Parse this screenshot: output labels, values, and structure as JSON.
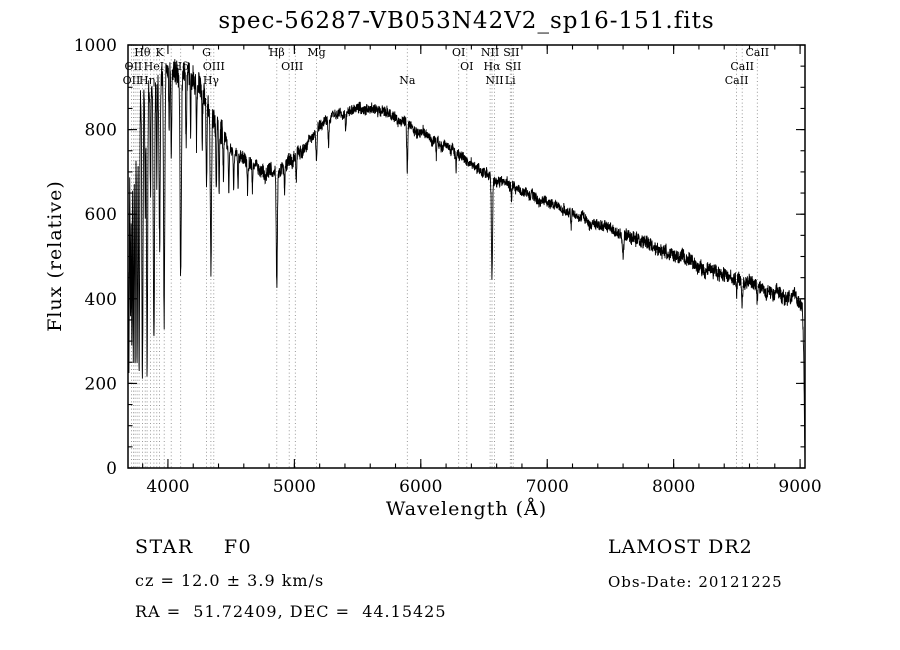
{
  "title": "spec-56287-VB053N42V2_sp16-151.fits",
  "footer": {
    "class_label": "STAR    F0",
    "survey": "LAMOST DR2",
    "cz": "cz = 12.0 ± 3.9 km/s",
    "obs_date": "Obs-Date: 20121225",
    "coords": "RA =  51.72409, DEC =  44.15425"
  },
  "chart_data": {
    "type": "line",
    "title": "spec-56287-VB053N42V2_sp16-151.fits",
    "xlabel": "Wavelength (Å)",
    "ylabel": "Flux (relative)",
    "xlim": [
      3684,
      9039
    ],
    "ylim": [
      0,
      1000
    ],
    "x_ticks": [
      4000,
      5000,
      6000,
      7000,
      8000,
      9000
    ],
    "y_ticks": [
      0,
      200,
      400,
      600,
      800,
      1000
    ],
    "x_minor_step": 200,
    "y_minor_step": 50,
    "grid": false,
    "legend": null,
    "envelope": [
      [
        3684,
        500
      ],
      [
        3700,
        800
      ],
      [
        3740,
        860
      ],
      [
        3780,
        885
      ],
      [
        3820,
        895
      ],
      [
        3860,
        905
      ],
      [
        3900,
        915
      ],
      [
        3950,
        935
      ],
      [
        4000,
        948
      ],
      [
        4060,
        930
      ],
      [
        4120,
        928
      ],
      [
        4180,
        930
      ],
      [
        4240,
        908
      ],
      [
        4300,
        880
      ],
      [
        4360,
        820
      ],
      [
        4420,
        795
      ],
      [
        4480,
        762
      ],
      [
        4540,
        742
      ],
      [
        4600,
        728
      ],
      [
        4660,
        718
      ],
      [
        4720,
        710
      ],
      [
        4780,
        705
      ],
      [
        4840,
        701
      ],
      [
        4900,
        706
      ],
      [
        4960,
        718
      ],
      [
        5020,
        736
      ],
      [
        5080,
        760
      ],
      [
        5140,
        785
      ],
      [
        5200,
        805
      ],
      [
        5280,
        825
      ],
      [
        5360,
        838
      ],
      [
        5440,
        847
      ],
      [
        5520,
        851
      ],
      [
        5600,
        848
      ],
      [
        5680,
        841
      ],
      [
        5760,
        832
      ],
      [
        5840,
        821
      ],
      [
        5920,
        808
      ],
      [
        6000,
        792
      ],
      [
        6100,
        776
      ],
      [
        6200,
        759
      ],
      [
        6300,
        740
      ],
      [
        6400,
        719
      ],
      [
        6500,
        701
      ],
      [
        6600,
        679
      ],
      [
        6700,
        667
      ],
      [
        6800,
        654
      ],
      [
        6900,
        641
      ],
      [
        7000,
        628
      ],
      [
        7150,
        610
      ],
      [
        7300,
        590
      ],
      [
        7450,
        570
      ],
      [
        7600,
        553
      ],
      [
        7750,
        533
      ],
      [
        7900,
        514
      ],
      [
        8050,
        496
      ],
      [
        8200,
        478
      ],
      [
        8350,
        462
      ],
      [
        8500,
        447
      ],
      [
        8650,
        429
      ],
      [
        8800,
        413
      ],
      [
        8900,
        400
      ],
      [
        8960,
        408
      ],
      [
        9000,
        390
      ],
      [
        9018,
        378
      ],
      [
        9028,
        290
      ],
      [
        9034,
        140
      ],
      [
        9039,
        15
      ]
    ],
    "absorption_lines": [
      [
        3691,
        420,
        3
      ],
      [
        3704,
        470,
        3
      ],
      [
        3714,
        520,
        3
      ],
      [
        3726,
        560,
        3.5
      ],
      [
        3740,
        600,
        3.5
      ],
      [
        3756,
        620,
        4
      ],
      [
        3772,
        645,
        4
      ],
      [
        3798,
        665,
        4.5
      ],
      [
        3820,
        300,
        3
      ],
      [
        3835,
        685,
        4.5
      ],
      [
        3862,
        280,
        3
      ],
      [
        3889,
        630,
        5
      ],
      [
        3912,
        240,
        3
      ],
      [
        3934,
        390,
        5
      ],
      [
        3970,
        590,
        5
      ],
      [
        4009,
        160,
        3
      ],
      [
        4026,
        210,
        3.5
      ],
      [
        4101,
        480,
        5
      ],
      [
        4144,
        170,
        3.5
      ],
      [
        4179,
        120,
        3
      ],
      [
        4226,
        150,
        3
      ],
      [
        4271,
        130,
        3
      ],
      [
        4305,
        190,
        4
      ],
      [
        4340,
        370,
        5
      ],
      [
        4383,
        160,
        3.5
      ],
      [
        4405,
        130,
        3
      ],
      [
        4438,
        100,
        3
      ],
      [
        4481,
        100,
        3
      ],
      [
        4520,
        80,
        3
      ],
      [
        4554,
        70,
        3
      ],
      [
        4630,
        70,
        3
      ],
      [
        4668,
        60,
        3
      ],
      [
        4861,
        278,
        4.5
      ],
      [
        4922,
        65,
        3
      ],
      [
        5015,
        60,
        3
      ],
      [
        5175,
        75,
        5
      ],
      [
        5270,
        55,
        4
      ],
      [
        5406,
        45,
        3
      ],
      [
        5893,
        118,
        4
      ],
      [
        6122,
        45,
        3
      ],
      [
        6280,
        35,
        3
      ],
      [
        6563,
        238,
        4.5
      ],
      [
        6717,
        48,
        3
      ],
      [
        7190,
        35,
        3
      ],
      [
        7600,
        55,
        5
      ],
      [
        8498,
        38,
        3
      ],
      [
        8542,
        48,
        3.5
      ],
      [
        8662,
        42,
        3.5
      ]
    ],
    "noise": {
      "seed": 19,
      "walk_step": 6,
      "walk_damp": 0.93,
      "bands": [
        [
          4450,
          30
        ],
        [
          5100,
          17
        ],
        [
          7600,
          12
        ],
        [
          10000,
          16
        ]
      ]
    },
    "spectral_lines": [
      3712,
      3727,
      3740,
      3756,
      3772,
      3798,
      3820,
      3835,
      3862,
      3889,
      3912,
      3934,
      3970,
      4026,
      4101,
      4305,
      4340,
      4363,
      4861,
      4959,
      5007,
      5175,
      5893,
      6300,
      6364,
      6548,
      6563,
      6583,
      6708,
      6717,
      6731,
      8498,
      8542,
      8662
    ],
    "line_labels": [
      {
        "text": "Hθ",
        "wl": 3798,
        "row": 1
      },
      {
        "text": "K",
        "wl": 3934,
        "row": 1
      },
      {
        "text": "G",
        "wl": 4305,
        "row": 1
      },
      {
        "text": "Hβ",
        "wl": 4861,
        "row": 1
      },
      {
        "text": "Mg",
        "wl": 5175,
        "row": 1
      },
      {
        "text": "OI",
        "wl": 6300,
        "row": 1
      },
      {
        "text": "NII",
        "wl": 6548,
        "row": 1
      },
      {
        "text": "SII",
        "wl": 6717,
        "row": 1
      },
      {
        "text": "CaII",
        "wl": 8662,
        "row": 1
      },
      {
        "text": "OII",
        "wl": 3727,
        "row": 2
      },
      {
        "text": "HeI",
        "wl": 3889,
        "row": 2
      },
      {
        "text": "Hδ",
        "wl": 4101,
        "row": 2
      },
      {
        "text": "OIII",
        "wl": 4363,
        "row": 2
      },
      {
        "text": "OIII",
        "wl": 4983,
        "row": 2
      },
      {
        "text": "OI",
        "wl": 6364,
        "row": 2
      },
      {
        "text": "Hα",
        "wl": 6563,
        "row": 2
      },
      {
        "text": "SII",
        "wl": 6731,
        "row": 2
      },
      {
        "text": "CaII",
        "wl": 8542,
        "row": 2
      },
      {
        "text": "OII",
        "wl": 3712,
        "row": 3
      },
      {
        "text": "Hη",
        "wl": 3835,
        "row": 3
      },
      {
        "text": "Hγ",
        "wl": 4340,
        "row": 3
      },
      {
        "text": "Na",
        "wl": 5893,
        "row": 3
      },
      {
        "text": "NII",
        "wl": 6583,
        "row": 3
      },
      {
        "text": "Li",
        "wl": 6708,
        "row": 3
      },
      {
        "text": "CaII",
        "wl": 8498,
        "row": 3
      }
    ]
  }
}
